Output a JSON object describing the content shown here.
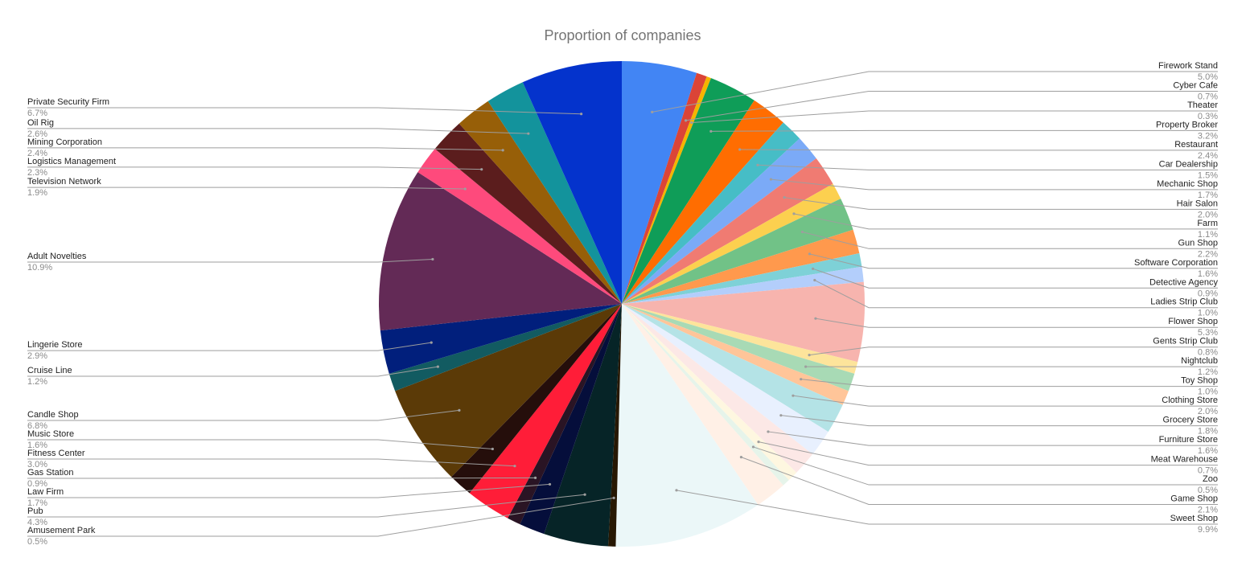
{
  "chart_data": {
    "type": "pie",
    "title": "Proportion of companies",
    "start_angle_deg": 0,
    "direction": "clockwise",
    "slices": [
      {
        "label": "Firework Stand",
        "value": 5.0,
        "pct": "5.0%",
        "color": "#4285f4",
        "side": "right"
      },
      {
        "label": "Cyber Cafe",
        "value": 0.7,
        "pct": "0.7%",
        "color": "#db4437",
        "side": "right"
      },
      {
        "label": "Theater",
        "value": 0.3,
        "pct": "0.3%",
        "color": "#f4b400",
        "side": "right"
      },
      {
        "label": "Property Broker",
        "value": 3.2,
        "pct": "3.2%",
        "color": "#0f9d58",
        "side": "right"
      },
      {
        "label": "Restaurant",
        "value": 2.4,
        "pct": "2.4%",
        "color": "#ff6d01",
        "side": "right"
      },
      {
        "label": "Car Dealership",
        "value": 1.5,
        "pct": "1.5%",
        "color": "#46bdc6",
        "side": "right"
      },
      {
        "label": "Mechanic Shop",
        "value": 1.7,
        "pct": "1.7%",
        "color": "#7baaf7",
        "side": "right"
      },
      {
        "label": "Hair Salon",
        "value": 2.0,
        "pct": "2.0%",
        "color": "#f07b72",
        "side": "right"
      },
      {
        "label": "Farm",
        "value": 1.1,
        "pct": "1.1%",
        "color": "#fcd04f",
        "side": "right"
      },
      {
        "label": "Gun Shop",
        "value": 2.2,
        "pct": "2.2%",
        "color": "#71c287",
        "side": "right"
      },
      {
        "label": "Software Corporation",
        "value": 1.6,
        "pct": "1.6%",
        "color": "#ff994d",
        "side": "right"
      },
      {
        "label": "Detective Agency",
        "value": 0.9,
        "pct": "0.9%",
        "color": "#7ed1d7",
        "side": "right"
      },
      {
        "label": "Ladies Strip Club",
        "value": 1.0,
        "pct": "1.0%",
        "color": "#b3cefb",
        "side": "right"
      },
      {
        "label": "Flower Shop",
        "value": 5.3,
        "pct": "5.3%",
        "color": "#f7b4ae",
        "side": "right"
      },
      {
        "label": "Gents Strip Club",
        "value": 0.8,
        "pct": "0.8%",
        "color": "#fde49b",
        "side": "right"
      },
      {
        "label": "Nightclub",
        "value": 1.2,
        "pct": "1.2%",
        "color": "#a8dab5",
        "side": "right"
      },
      {
        "label": "Toy Shop",
        "value": 1.0,
        "pct": "1.0%",
        "color": "#ffc599",
        "side": "right"
      },
      {
        "label": "Clothing Store",
        "value": 2.0,
        "pct": "2.0%",
        "color": "#b4e3e6",
        "side": "right"
      },
      {
        "label": "Grocery Store",
        "value": 1.8,
        "pct": "1.8%",
        "color": "#e8f0fe",
        "side": "right"
      },
      {
        "label": "Furniture Store",
        "value": 1.6,
        "pct": "1.6%",
        "color": "#fce8e6",
        "side": "right"
      },
      {
        "label": "Meat Warehouse",
        "value": 0.7,
        "pct": "0.7%",
        "color": "#fef7e0",
        "side": "right"
      },
      {
        "label": "Zoo",
        "value": 0.5,
        "pct": "0.5%",
        "color": "#e6f4ea",
        "side": "right"
      },
      {
        "label": "Game Shop",
        "value": 2.1,
        "pct": "2.1%",
        "color": "#fff0e6",
        "side": "right"
      },
      {
        "label": "Sweet Shop",
        "value": 9.9,
        "pct": "9.9%",
        "color": "#ebf7f8",
        "side": "right"
      },
      {
        "label": "Amusement Park",
        "value": 0.5,
        "pct": "0.5%",
        "color": "#271803",
        "side": "left"
      },
      {
        "label": "Pub",
        "value": 4.3,
        "pct": "4.3%",
        "color": "#062427",
        "side": "left"
      },
      {
        "label": "Law Firm",
        "value": 1.7,
        "pct": "1.7%",
        "color": "#050e3b",
        "side": "left"
      },
      {
        "label": "Gas Station",
        "value": 0.9,
        "pct": "0.9%",
        "color": "#2a1424",
        "side": "left"
      },
      {
        "label": "Fitness Center",
        "value": 3.0,
        "pct": "3.0%",
        "color": "#ff1d38",
        "side": "left"
      },
      {
        "label": "Music Store",
        "value": 1.6,
        "pct": "1.6%",
        "color": "#250e0b",
        "side": "left"
      },
      {
        "label": "Candle Shop",
        "value": 6.8,
        "pct": "6.8%",
        "color": "#5b3a07",
        "side": "left"
      },
      {
        "label": "Cruise Line",
        "value": 1.2,
        "pct": "1.2%",
        "color": "#125b61",
        "side": "left"
      },
      {
        "label": "Lingerie Store",
        "value": 2.9,
        "pct": "2.9%",
        "color": "#011f7c",
        "side": "left"
      },
      {
        "label": "Adult Novelties",
        "value": 10.9,
        "pct": "10.9%",
        "color": "#632a56",
        "side": "left"
      },
      {
        "label": "Television Network",
        "value": 1.9,
        "pct": "1.9%",
        "color": "#fe4a7c",
        "side": "left"
      },
      {
        "label": "Logistics Management",
        "value": 2.3,
        "pct": "2.3%",
        "color": "#5b1d1d",
        "side": "left"
      },
      {
        "label": "Mining Corporation",
        "value": 2.4,
        "pct": "2.4%",
        "color": "#975f08",
        "side": "left"
      },
      {
        "label": "Oil Rig",
        "value": 2.6,
        "pct": "2.6%",
        "color": "#13939c",
        "side": "left"
      },
      {
        "label": "Private Security Firm",
        "value": 6.7,
        "pct": "6.7%",
        "color": "#0433cc",
        "side": "left"
      }
    ],
    "legend": "none"
  }
}
